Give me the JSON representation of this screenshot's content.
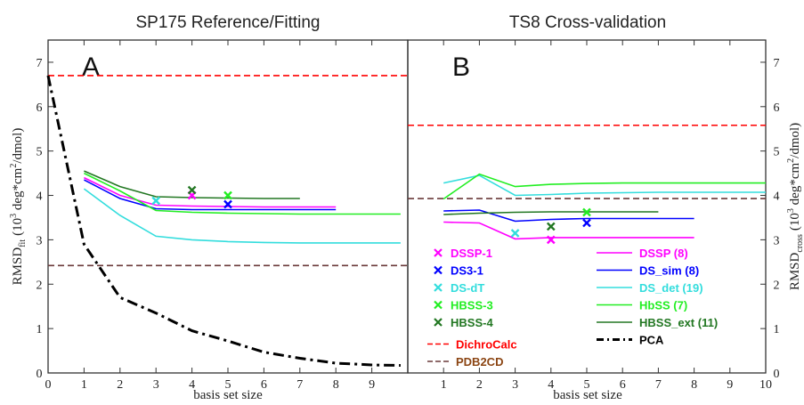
{
  "x_axis_title": "basis set size",
  "panels": [
    {
      "id": "A",
      "title": "SP175 Reference/Fitting",
      "letter": "A",
      "ylabel_main": "RMSD",
      "ylabel_sub": "fit",
      "ylabel_units_pre": "(10",
      "ylabel_units_sup3": "3",
      "ylabel_units_mid": " deg*cm",
      "ylabel_units_sup2": "2",
      "ylabel_units_post": "/dmol)"
    },
    {
      "id": "B",
      "title": "TS8 Cross-validation",
      "letter": "B",
      "ylabel_main": "RMSD",
      "ylabel_sub": "cross",
      "ylabel_units_pre": "(10",
      "ylabel_units_sup3": "3",
      "ylabel_units_mid": " deg*cm",
      "ylabel_units_sup2": "2",
      "ylabel_units_post": "/dmol)"
    }
  ],
  "legend": {
    "points": [
      {
        "name": "DSSP-1",
        "color": "#ff00ff"
      },
      {
        "name": "DS3-1",
        "color": "#0000ff"
      },
      {
        "name": "DS-dT",
        "color": "#33dddd"
      },
      {
        "name": "HBSS-3",
        "color": "#22ee22"
      },
      {
        "name": "HBSS-4",
        "color": "#227722"
      }
    ],
    "dashed": [
      {
        "name": "DichroCalc",
        "color": "#ff0000",
        "text_color": "#ff0000"
      },
      {
        "name": "PDB2CD",
        "color": "#6a3a3a",
        "text_color": "#8b4513"
      }
    ],
    "lines": [
      {
        "name": "DSSP (8)",
        "color": "#ff00ff"
      },
      {
        "name": "DS_sim (8)",
        "color": "#0000ff"
      },
      {
        "name": "DS_det (19)",
        "color": "#33dddd"
      },
      {
        "name": "HbSS (7)",
        "color": "#22ee22"
      },
      {
        "name": "HBSS_ext (11)",
        "color": "#227722"
      },
      {
        "name": "PCA",
        "color": "#000000",
        "text_color": "#000000"
      }
    ]
  },
  "chart_data": [
    {
      "type": "line",
      "title": "SP175 Reference/Fitting",
      "xlabel": "basis set size",
      "ylabel": "RMSD_fit (10^3 deg*cm^2/dmol)",
      "xlim": [
        0,
        10
      ],
      "ylim": [
        0,
        7.5
      ],
      "x_ticks": [
        0,
        1,
        2,
        3,
        4,
        5,
        6,
        7,
        8,
        9
      ],
      "y_ticks": [
        0,
        1,
        2,
        3,
        4,
        5,
        6,
        7
      ],
      "ref_lines": [
        {
          "name": "DichroCalc",
          "y": 6.7,
          "color": "#ff0000"
        },
        {
          "name": "PDB2CD",
          "y": 2.42,
          "color": "#6a3a3a"
        }
      ],
      "series": [
        {
          "name": "DSSP (8)",
          "color": "#ff00ff",
          "x": [
            1,
            2,
            3,
            4,
            5,
            6,
            7,
            8
          ],
          "y": [
            4.4,
            4.0,
            3.78,
            3.76,
            3.75,
            3.74,
            3.74,
            3.74
          ]
        },
        {
          "name": "DS_sim (8)",
          "color": "#0000ff",
          "x": [
            1,
            2,
            3,
            4,
            5,
            6,
            7,
            8
          ],
          "y": [
            4.35,
            3.93,
            3.7,
            3.68,
            3.68,
            3.68,
            3.68,
            3.68
          ]
        },
        {
          "name": "DS_det (19)",
          "color": "#33dddd",
          "x": [
            1,
            2,
            3,
            4,
            5,
            6,
            7,
            8,
            9,
            9.8
          ],
          "y": [
            4.15,
            3.55,
            3.08,
            3.0,
            2.96,
            2.94,
            2.93,
            2.93,
            2.93,
            2.93
          ]
        },
        {
          "name": "HbSS (7)",
          "color": "#22ee22",
          "x": [
            1,
            2,
            3,
            4,
            5,
            6,
            7,
            8,
            9,
            9.8
          ],
          "y": [
            4.5,
            4.1,
            3.66,
            3.62,
            3.6,
            3.59,
            3.58,
            3.58,
            3.58,
            3.58
          ]
        },
        {
          "name": "HBSS_ext (11)",
          "color": "#227722",
          "x": [
            1,
            2,
            3,
            4,
            5,
            6,
            7
          ],
          "y": [
            4.55,
            4.2,
            3.97,
            3.95,
            3.94,
            3.93,
            3.93
          ]
        },
        {
          "name": "PCA",
          "color": "#000000",
          "x": [
            0,
            0.5,
            1,
            1.5,
            2,
            3,
            4,
            5,
            6,
            7,
            8,
            9,
            9.8
          ],
          "y": [
            6.7,
            4.8,
            2.9,
            2.3,
            1.7,
            1.35,
            0.95,
            0.72,
            0.47,
            0.33,
            0.22,
            0.18,
            0.17
          ]
        }
      ],
      "points": [
        {
          "name": "DSSP-1",
          "color": "#ff00ff",
          "x": 4,
          "y": 4.0
        },
        {
          "name": "DS3-1",
          "color": "#0000ff",
          "x": 5,
          "y": 3.8
        },
        {
          "name": "DS-dT",
          "color": "#33dddd",
          "x": 3,
          "y": 3.88
        },
        {
          "name": "HBSS-3",
          "color": "#22ee22",
          "x": 5,
          "y": 4.0
        },
        {
          "name": "HBSS-4",
          "color": "#227722",
          "x": 4,
          "y": 4.12
        }
      ]
    },
    {
      "type": "line",
      "title": "TS8 Cross-validation",
      "xlabel": "basis set size",
      "ylabel": "RMSD_cross (10^3 deg*cm^2/dmol)",
      "xlim": [
        0,
        10
      ],
      "ylim": [
        0,
        7.5
      ],
      "x_ticks": [
        1,
        2,
        3,
        4,
        5,
        6,
        7,
        8,
        9,
        10
      ],
      "y_ticks": [
        0,
        1,
        2,
        3,
        4,
        5,
        6,
        7
      ],
      "ref_lines": [
        {
          "name": "DichroCalc",
          "y": 5.58,
          "color": "#ff0000"
        },
        {
          "name": "PDB2CD",
          "y": 3.93,
          "color": "#6a3a3a"
        }
      ],
      "series": [
        {
          "name": "DSSP (8)",
          "color": "#ff00ff",
          "x": [
            1,
            2,
            3,
            4,
            5,
            6,
            7,
            8
          ],
          "y": [
            3.4,
            3.38,
            3.02,
            3.05,
            3.05,
            3.05,
            3.05,
            3.05
          ]
        },
        {
          "name": "DS_sim (8)",
          "color": "#0000ff",
          "x": [
            1,
            2,
            3,
            4,
            5,
            6,
            7,
            8
          ],
          "y": [
            3.65,
            3.67,
            3.42,
            3.46,
            3.48,
            3.48,
            3.48,
            3.48
          ]
        },
        {
          "name": "DS_det (19)",
          "color": "#33dddd",
          "x": [
            1,
            2,
            3,
            4,
            5,
            6,
            7,
            8,
            9,
            10
          ],
          "y": [
            4.28,
            4.45,
            4.0,
            4.02,
            4.05,
            4.06,
            4.07,
            4.07,
            4.07,
            4.07
          ]
        },
        {
          "name": "HbSS (7)",
          "color": "#22ee22",
          "x": [
            1,
            2,
            3,
            4,
            5,
            6,
            7,
            8,
            9,
            10
          ],
          "y": [
            3.92,
            4.48,
            4.2,
            4.25,
            4.27,
            4.28,
            4.28,
            4.28,
            4.28,
            4.28
          ]
        },
        {
          "name": "HBSS_ext (11)",
          "color": "#227722",
          "x": [
            1,
            2,
            3,
            4,
            5,
            6,
            7
          ],
          "y": [
            3.57,
            3.6,
            3.62,
            3.63,
            3.63,
            3.63,
            3.63
          ]
        }
      ],
      "points": [
        {
          "name": "DSSP-1",
          "color": "#ff00ff",
          "x": 4,
          "y": 3.0
        },
        {
          "name": "DS3-1",
          "color": "#0000ff",
          "x": 5,
          "y": 3.38
        },
        {
          "name": "DS-dT",
          "color": "#33dddd",
          "x": 3,
          "y": 3.15
        },
        {
          "name": "HBSS-3",
          "color": "#22ee22",
          "x": 5,
          "y": 3.62
        },
        {
          "name": "HBSS-4",
          "color": "#227722",
          "x": 4,
          "y": 3.3
        }
      ]
    }
  ]
}
